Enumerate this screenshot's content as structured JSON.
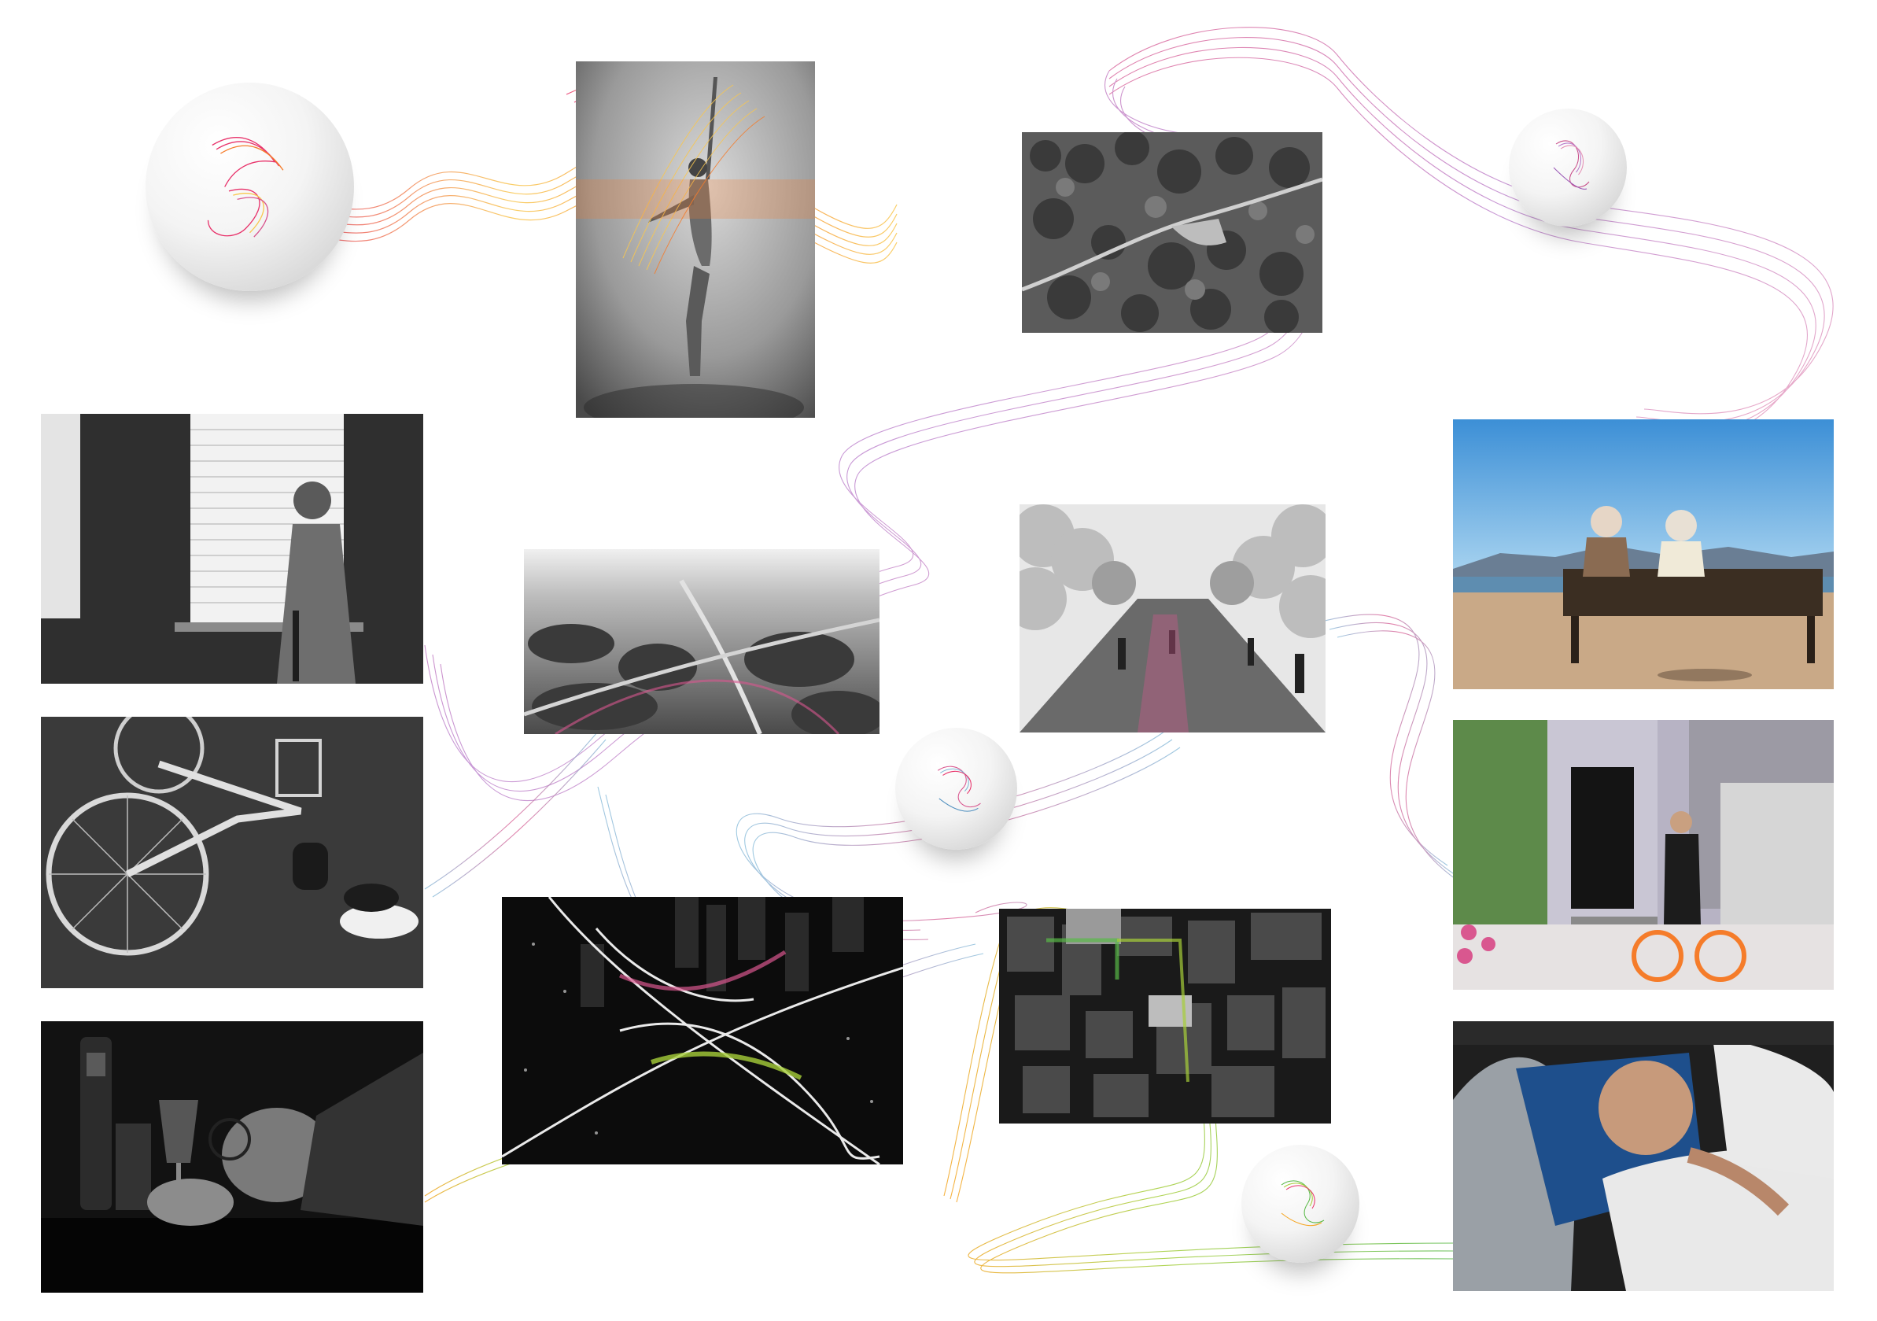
{
  "composition": {
    "background": "#ffffff",
    "ribbon_colors": {
      "warm": [
        "#e8336b",
        "#f57c2a",
        "#f9c74f"
      ],
      "pink": [
        "#c94f8a",
        "#e58fb4",
        "#b678c9"
      ],
      "blue": [
        "#7fb8d8",
        "#4f8fbf"
      ],
      "green": [
        "#a6ce39",
        "#59b947",
        "#f5a623"
      ]
    }
  },
  "photos": [
    {
      "id": "dancer",
      "subject": "dancer-black-and-white",
      "tone": "grayscale"
    },
    {
      "id": "aerial-forest",
      "subject": "aerial-forest-trail",
      "tone": "grayscale"
    },
    {
      "id": "bench-couple",
      "subject": "elderly-couple-on-bench",
      "tone": "color"
    },
    {
      "id": "man-window",
      "subject": "man-at-window-blinds",
      "tone": "grayscale"
    },
    {
      "id": "aerial-highway-day",
      "subject": "aerial-highway-interchange",
      "tone": "grayscale"
    },
    {
      "id": "cherry-avenue",
      "subject": "cherry-blossom-avenue",
      "tone": "grayscale"
    },
    {
      "id": "fallen-bike",
      "subject": "fallen-bicycle",
      "tone": "grayscale"
    },
    {
      "id": "man-bike-door",
      "subject": "man-with-bike-at-door",
      "tone": "color"
    },
    {
      "id": "night-interchange",
      "subject": "night-highway-interchange",
      "tone": "grayscale"
    },
    {
      "id": "city-aerial",
      "subject": "city-aerial-grid",
      "tone": "grayscale"
    },
    {
      "id": "drunk-man",
      "subject": "man-asleep-at-bar",
      "tone": "grayscale"
    },
    {
      "id": "sleeping-man",
      "subject": "man-sleeping-in-bed",
      "tone": "color"
    }
  ],
  "orbs": [
    {
      "id": "orb-warm",
      "palette": "warm"
    },
    {
      "id": "orb-pink",
      "palette": "pink"
    },
    {
      "id": "orb-multi",
      "palette": "blue"
    },
    {
      "id": "orb-green",
      "palette": "green"
    }
  ]
}
